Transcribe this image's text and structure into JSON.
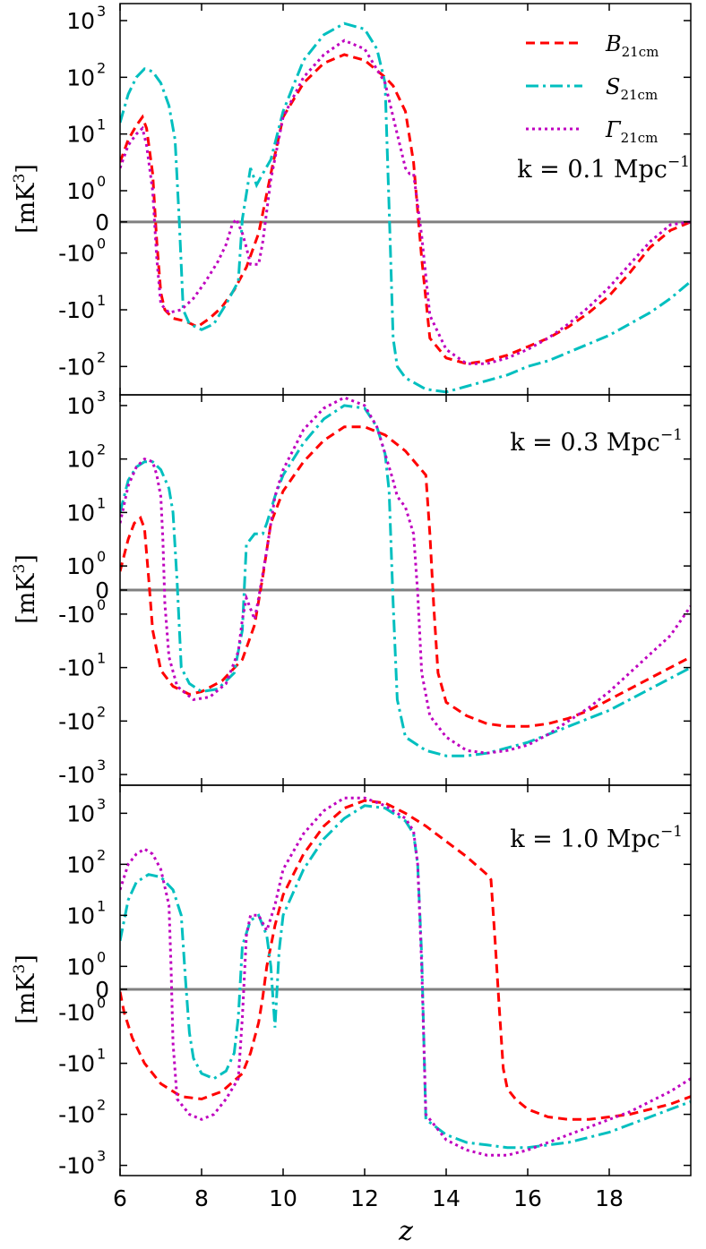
{
  "chart_data": [
    {
      "type": "line",
      "panel": "top",
      "annotation": {
        "prefix": "k = 0.1 Mpc",
        "sup": "−1"
      },
      "ylabel": {
        "main": "[mK",
        "sup": "3",
        "close": "]"
      },
      "xlim": [
        6,
        20
      ],
      "ytick_labels": [
        {
          "base": "10",
          "exp": "3",
          "value": 3.0
        },
        {
          "base": "10",
          "exp": "2",
          "value": 2.0
        },
        {
          "base": "10",
          "exp": "1",
          "value": 1.0
        },
        {
          "base": "10",
          "exp": "0",
          "value": 0.0
        },
        {
          "base": "0",
          "exp": "",
          "value": -0.55
        },
        {
          "base": "-10",
          "exp": "0",
          "value": -1.1
        },
        {
          "base": "-10",
          "exp": "1",
          "value": -2.1
        },
        {
          "base": "-10",
          "exp": "2",
          "value": -3.1
        }
      ],
      "ylim": [
        -3.6,
        3.3
      ],
      "zero_line": -0.55,
      "legend": [
        {
          "name": "B",
          "sub": "21cm",
          "color": "#ff0000",
          "dash": "10,6"
        },
        {
          "name": "S",
          "sub": "21cm",
          "color": "#00bfbf",
          "dash": "14,5,3,5"
        },
        {
          "name": "Γ",
          "sub": "21cm",
          "color": "#bf00bf",
          "dash": "3,4"
        }
      ],
      "series": [
        {
          "name": "B_21cm",
          "color": "#ff0000",
          "dash": "10,6",
          "x": [
            6,
            6.2,
            6.4,
            6.55,
            6.65,
            6.8,
            6.9,
            7.0,
            7.1,
            7.3,
            7.6,
            7.9,
            8.2,
            8.5,
            8.8,
            9.1,
            9.4,
            9.7,
            10.0,
            10.5,
            11.0,
            11.5,
            12.0,
            12.5,
            12.7,
            13.0,
            13.2,
            13.4,
            13.6,
            14.0,
            14.5,
            15.0,
            15.5,
            16.0,
            16.5,
            17.0,
            17.5,
            18.0,
            18.5,
            19.0,
            19.5,
            20.0
          ],
          "y": [
            0.5,
            0.9,
            1.15,
            1.3,
            1.1,
            0.3,
            -0.9,
            -1.8,
            -2.1,
            -2.25,
            -2.3,
            -2.4,
            -2.25,
            -2.05,
            -1.75,
            -1.35,
            -0.75,
            0.3,
            1.3,
            1.9,
            2.25,
            2.4,
            2.3,
            2.0,
            1.85,
            1.4,
            0.5,
            -1.2,
            -2.6,
            -2.95,
            -3.05,
            -3.0,
            -2.9,
            -2.75,
            -2.6,
            -2.4,
            -2.15,
            -1.85,
            -1.45,
            -1.0,
            -0.7,
            -0.55
          ]
        },
        {
          "name": "S_21cm",
          "color": "#00bfbf",
          "dash": "14,5,3,5",
          "x": [
            6,
            6.2,
            6.4,
            6.6,
            6.8,
            7.0,
            7.2,
            7.35,
            7.45,
            7.55,
            7.7,
            8.0,
            8.3,
            8.6,
            8.9,
            9.0,
            9.2,
            9.35,
            9.5,
            9.7,
            10.0,
            10.5,
            11.0,
            11.5,
            12.0,
            12.3,
            12.5,
            12.6,
            12.7,
            12.8,
            13.0,
            13.5,
            14.0,
            14.5,
            15.0,
            15.5,
            16.0,
            16.5,
            17.0,
            17.5,
            18.0,
            18.5,
            19.0,
            19.5,
            20.0
          ],
          "y": [
            1.2,
            1.7,
            2.0,
            2.15,
            2.1,
            1.9,
            1.5,
            0.9,
            -0.5,
            -2.1,
            -2.35,
            -2.45,
            -2.35,
            -2.0,
            -1.6,
            -0.5,
            0.4,
            0.1,
            0.3,
            0.55,
            1.4,
            2.3,
            2.75,
            2.95,
            2.85,
            2.5,
            1.9,
            -0.3,
            -2.6,
            -3.1,
            -3.3,
            -3.5,
            -3.55,
            -3.45,
            -3.35,
            -3.25,
            -3.1,
            -3.0,
            -2.85,
            -2.7,
            -2.55,
            -2.35,
            -2.15,
            -1.9,
            -1.6
          ]
        },
        {
          "name": "Γ_21cm",
          "color": "#bf00bf",
          "dash": "3,4",
          "x": [
            6,
            6.2,
            6.4,
            6.55,
            6.65,
            6.8,
            6.9,
            7.0,
            7.2,
            7.5,
            7.8,
            8.1,
            8.4,
            8.6,
            8.75,
            8.85,
            9.0,
            9.1,
            9.2,
            9.4,
            9.5,
            9.7,
            10.0,
            10.5,
            11.0,
            11.5,
            12.0,
            12.5,
            12.7,
            13.0,
            13.1,
            13.2,
            13.4,
            13.6,
            14.0,
            14.5,
            15.0,
            15.5,
            16.0,
            16.5,
            17.0,
            17.5,
            18.0,
            18.5,
            19.0,
            19.5,
            20.0
          ],
          "y": [
            0.4,
            0.8,
            1.0,
            1.1,
            0.8,
            0.0,
            -1.2,
            -2.0,
            -2.15,
            -2.1,
            -1.9,
            -1.6,
            -1.25,
            -0.95,
            -0.6,
            -0.5,
            -0.75,
            -1.0,
            -1.3,
            -1.3,
            -0.9,
            0.2,
            1.3,
            2.0,
            2.4,
            2.65,
            2.5,
            1.9,
            1.3,
            0.4,
            0.3,
            0.3,
            -0.8,
            -2.2,
            -2.8,
            -3.05,
            -3.05,
            -2.95,
            -2.8,
            -2.6,
            -2.35,
            -2.05,
            -1.7,
            -1.3,
            -0.9,
            -0.6,
            -0.55
          ]
        }
      ]
    },
    {
      "type": "line",
      "panel": "middle",
      "annotation": {
        "prefix": "k = 0.3 Mpc",
        "sup": "−1"
      },
      "ylabel": {
        "main": "[mK",
        "sup": "3",
        "close": "]"
      },
      "xlim": [
        6,
        20
      ],
      "ytick_labels": [
        {
          "base": "10",
          "exp": "3",
          "value": 3.0
        },
        {
          "base": "10",
          "exp": "2",
          "value": 2.0
        },
        {
          "base": "10",
          "exp": "1",
          "value": 1.0
        },
        {
          "base": "10",
          "exp": "0",
          "value": 0.0
        },
        {
          "base": "0",
          "exp": "",
          "value": -0.45
        },
        {
          "base": "-10",
          "exp": "0",
          "value": -0.9
        },
        {
          "base": "-10",
          "exp": "1",
          "value": -1.9
        },
        {
          "base": "-10",
          "exp": "2",
          "value": -2.9
        },
        {
          "base": "-10",
          "exp": "3",
          "value": -3.9
        }
      ],
      "ylim": [
        -4.1,
        3.2
      ],
      "zero_line": -0.45,
      "series": [
        {
          "name": "B_21cm",
          "color": "#ff0000",
          "dash": "10,6",
          "x": [
            6,
            6.2,
            6.35,
            6.5,
            6.6,
            6.7,
            6.8,
            7.0,
            7.3,
            7.7,
            8.0,
            8.5,
            9.0,
            9.3,
            9.5,
            9.6,
            9.7,
            10.0,
            10.5,
            11.0,
            11.5,
            12.0,
            12.5,
            13.0,
            13.5,
            13.6,
            13.7,
            13.8,
            14.0,
            14.5,
            15.0,
            15.5,
            16.0,
            16.5,
            17.0,
            17.5,
            18.0,
            18.5,
            19.0,
            19.5,
            20.0
          ],
          "y": [
            -0.1,
            0.5,
            0.8,
            0.9,
            0.7,
            -0.2,
            -1.2,
            -1.95,
            -2.25,
            -2.4,
            -2.35,
            -2.15,
            -1.75,
            -1.1,
            -0.2,
            0.3,
            0.8,
            1.4,
            1.95,
            2.35,
            2.6,
            2.6,
            2.45,
            2.15,
            1.7,
            0.6,
            -0.8,
            -2.0,
            -2.55,
            -2.8,
            -2.95,
            -3.0,
            -3.0,
            -2.95,
            -2.85,
            -2.7,
            -2.5,
            -2.3,
            -2.1,
            -1.9,
            -1.7
          ]
        },
        {
          "name": "S_21cm",
          "color": "#00bfbf",
          "dash": "14,5,3,5",
          "x": [
            6,
            6.2,
            6.4,
            6.6,
            6.8,
            7.0,
            7.2,
            7.3,
            7.4,
            7.5,
            7.7,
            8.0,
            8.4,
            8.8,
            9.0,
            9.1,
            9.3,
            9.5,
            9.6,
            9.8,
            10.0,
            10.5,
            11.0,
            11.5,
            12.0,
            12.3,
            12.5,
            12.6,
            12.7,
            12.8,
            13.0,
            13.5,
            14.0,
            14.5,
            15.0,
            15.5,
            16.0,
            16.5,
            17.0,
            17.5,
            18.0,
            18.5,
            19.0,
            19.5,
            20.0
          ],
          "y": [
            1.0,
            1.6,
            1.85,
            1.95,
            1.95,
            1.8,
            1.45,
            1.0,
            -0.3,
            -1.9,
            -2.2,
            -2.35,
            -2.3,
            -2.0,
            -1.2,
            0.4,
            0.6,
            0.6,
            0.8,
            1.3,
            1.7,
            2.3,
            2.75,
            3.0,
            2.95,
            2.6,
            2.1,
            1.4,
            -0.7,
            -2.5,
            -3.2,
            -3.45,
            -3.55,
            -3.55,
            -3.5,
            -3.4,
            -3.3,
            -3.15,
            -3.0,
            -2.85,
            -2.7,
            -2.5,
            -2.3,
            -2.1,
            -1.9
          ]
        },
        {
          "name": "Γ_21cm",
          "color": "#bf00bf",
          "dash": "3,4",
          "x": [
            6,
            6.2,
            6.4,
            6.6,
            6.8,
            6.9,
            7.0,
            7.05,
            7.1,
            7.2,
            7.4,
            7.8,
            8.2,
            8.6,
            8.9,
            9.0,
            9.1,
            9.2,
            9.3,
            9.4,
            9.6,
            9.8,
            10.0,
            10.5,
            11.0,
            11.5,
            12.0,
            12.3,
            12.5,
            12.7,
            12.8,
            13.0,
            13.2,
            13.3,
            13.4,
            13.6,
            14.0,
            14.5,
            15.0,
            15.5,
            16.0,
            16.5,
            17.0,
            17.5,
            18.0,
            18.5,
            19.0,
            19.5,
            20.0
          ],
          "y": [
            0.8,
            1.5,
            1.85,
            2.0,
            1.95,
            1.7,
            1.3,
            0.5,
            -0.7,
            -1.7,
            -2.25,
            -2.5,
            -2.45,
            -2.2,
            -1.6,
            -1.0,
            -0.6,
            -0.8,
            -1.0,
            -0.6,
            0.3,
            1.3,
            1.8,
            2.55,
            2.95,
            3.15,
            3.0,
            2.6,
            2.1,
            1.6,
            1.3,
            1.1,
            0.6,
            -0.5,
            -2.0,
            -2.8,
            -3.2,
            -3.45,
            -3.5,
            -3.45,
            -3.35,
            -3.15,
            -2.9,
            -2.65,
            -2.35,
            -2.0,
            -1.65,
            -1.3,
            -0.75
          ]
        }
      ]
    },
    {
      "type": "line",
      "panel": "bottom",
      "annotation": {
        "prefix": "k = 1.0 Mpc",
        "sup": "−1"
      },
      "ylabel": {
        "main": "[mK",
        "sup": "3",
        "close": "]"
      },
      "xlim": [
        6,
        20
      ],
      "xlabel": "z",
      "xticks": [
        6,
        8,
        10,
        12,
        14,
        16,
        18
      ],
      "ytick_labels": [
        {
          "base": "10",
          "exp": "3",
          "value": 3.0
        },
        {
          "base": "10",
          "exp": "2",
          "value": 2.0
        },
        {
          "base": "10",
          "exp": "1",
          "value": 1.0
        },
        {
          "base": "10",
          "exp": "0",
          "value": 0.0
        },
        {
          "base": "0",
          "exp": "",
          "value": -0.45
        },
        {
          "base": "-10",
          "exp": "0",
          "value": -0.9
        },
        {
          "base": "-10",
          "exp": "1",
          "value": -1.9
        },
        {
          "base": "-10",
          "exp": "2",
          "value": -2.9
        },
        {
          "base": "-10",
          "exp": "3",
          "value": -3.9
        }
      ],
      "ylim": [
        -4.1,
        3.55
      ],
      "zero_line": -0.45,
      "series": [
        {
          "name": "B_21cm",
          "color": "#ff0000",
          "dash": "10,6",
          "x": [
            6,
            6.1,
            6.3,
            6.6,
            7.0,
            7.5,
            8.0,
            8.5,
            9.0,
            9.2,
            9.4,
            9.5,
            9.6,
            9.8,
            10.0,
            10.5,
            11.0,
            11.5,
            12.0,
            12.5,
            13.0,
            13.5,
            14.0,
            14.5,
            15.0,
            15.1,
            15.2,
            15.3,
            15.4,
            15.5,
            15.7,
            16.0,
            16.5,
            17.0,
            17.5,
            18.0,
            18.5,
            19.0,
            19.5,
            20.0
          ],
          "y": [
            -0.5,
            -0.9,
            -1.4,
            -1.9,
            -2.3,
            -2.55,
            -2.6,
            -2.45,
            -2.1,
            -1.7,
            -1.1,
            -0.6,
            0.0,
            0.8,
            1.4,
            2.2,
            2.75,
            3.1,
            3.25,
            3.2,
            3.0,
            2.75,
            2.45,
            2.15,
            1.8,
            1.7,
            0.5,
            -0.8,
            -2.0,
            -2.4,
            -2.6,
            -2.8,
            -2.95,
            -3.0,
            -3.0,
            -2.95,
            -2.9,
            -2.8,
            -2.7,
            -2.55
          ]
        },
        {
          "name": "S_21cm",
          "color": "#00bfbf",
          "dash": "14,5,3,5",
          "x": [
            6,
            6.2,
            6.4,
            6.7,
            7.0,
            7.3,
            7.5,
            7.6,
            7.7,
            7.8,
            8.0,
            8.3,
            8.6,
            8.8,
            8.9,
            9.0,
            9.2,
            9.4,
            9.6,
            9.7,
            9.8,
            9.9,
            10.0,
            10.5,
            11.0,
            11.5,
            12.0,
            12.5,
            13.0,
            13.2,
            13.3,
            13.4,
            13.5,
            14.0,
            14.5,
            15.0,
            15.5,
            16.0,
            16.5,
            17.0,
            17.5,
            18.0,
            18.5,
            19.0,
            19.5,
            20.0
          ],
          "y": [
            0.5,
            1.3,
            1.65,
            1.8,
            1.75,
            1.5,
            1.0,
            -0.2,
            -1.3,
            -1.8,
            -2.1,
            -2.2,
            -2.05,
            -1.7,
            -1.0,
            0.4,
            0.9,
            1.0,
            0.6,
            0.0,
            -1.2,
            0.3,
            1.0,
            1.9,
            2.5,
            2.9,
            3.15,
            3.1,
            2.85,
            2.6,
            2.0,
            0.2,
            -3.0,
            -3.3,
            -3.45,
            -3.5,
            -3.55,
            -3.55,
            -3.5,
            -3.45,
            -3.35,
            -3.25,
            -3.1,
            -2.95,
            -2.8,
            -2.65
          ]
        },
        {
          "name": "Γ_21cm",
          "color": "#bf00bf",
          "dash": "3,4",
          "x": [
            6,
            6.2,
            6.4,
            6.6,
            6.8,
            7.0,
            7.2,
            7.25,
            7.3,
            7.4,
            7.7,
            8.0,
            8.3,
            8.6,
            8.9,
            9.0,
            9.1,
            9.2,
            9.4,
            9.6,
            9.8,
            10.0,
            10.5,
            11.0,
            11.5,
            12.0,
            12.5,
            13.0,
            13.2,
            13.3,
            13.4,
            13.5,
            14.0,
            14.5,
            15.0,
            15.5,
            16.0,
            16.5,
            17.0,
            17.5,
            18.0,
            18.5,
            19.0,
            19.5,
            20.0
          ],
          "y": [
            1.5,
            2.0,
            2.2,
            2.3,
            2.2,
            1.9,
            1.2,
            0.0,
            -1.5,
            -2.6,
            -2.9,
            -3.0,
            -2.9,
            -2.6,
            -2.2,
            -1.0,
            0.6,
            1.0,
            1.0,
            0.7,
            1.2,
            1.9,
            2.6,
            3.05,
            3.3,
            3.3,
            3.15,
            2.9,
            2.65,
            2.0,
            0.0,
            -2.9,
            -3.4,
            -3.6,
            -3.7,
            -3.7,
            -3.6,
            -3.45,
            -3.3,
            -3.15,
            -3.0,
            -2.85,
            -2.65,
            -2.45,
            -2.2
          ]
        }
      ]
    }
  ]
}
